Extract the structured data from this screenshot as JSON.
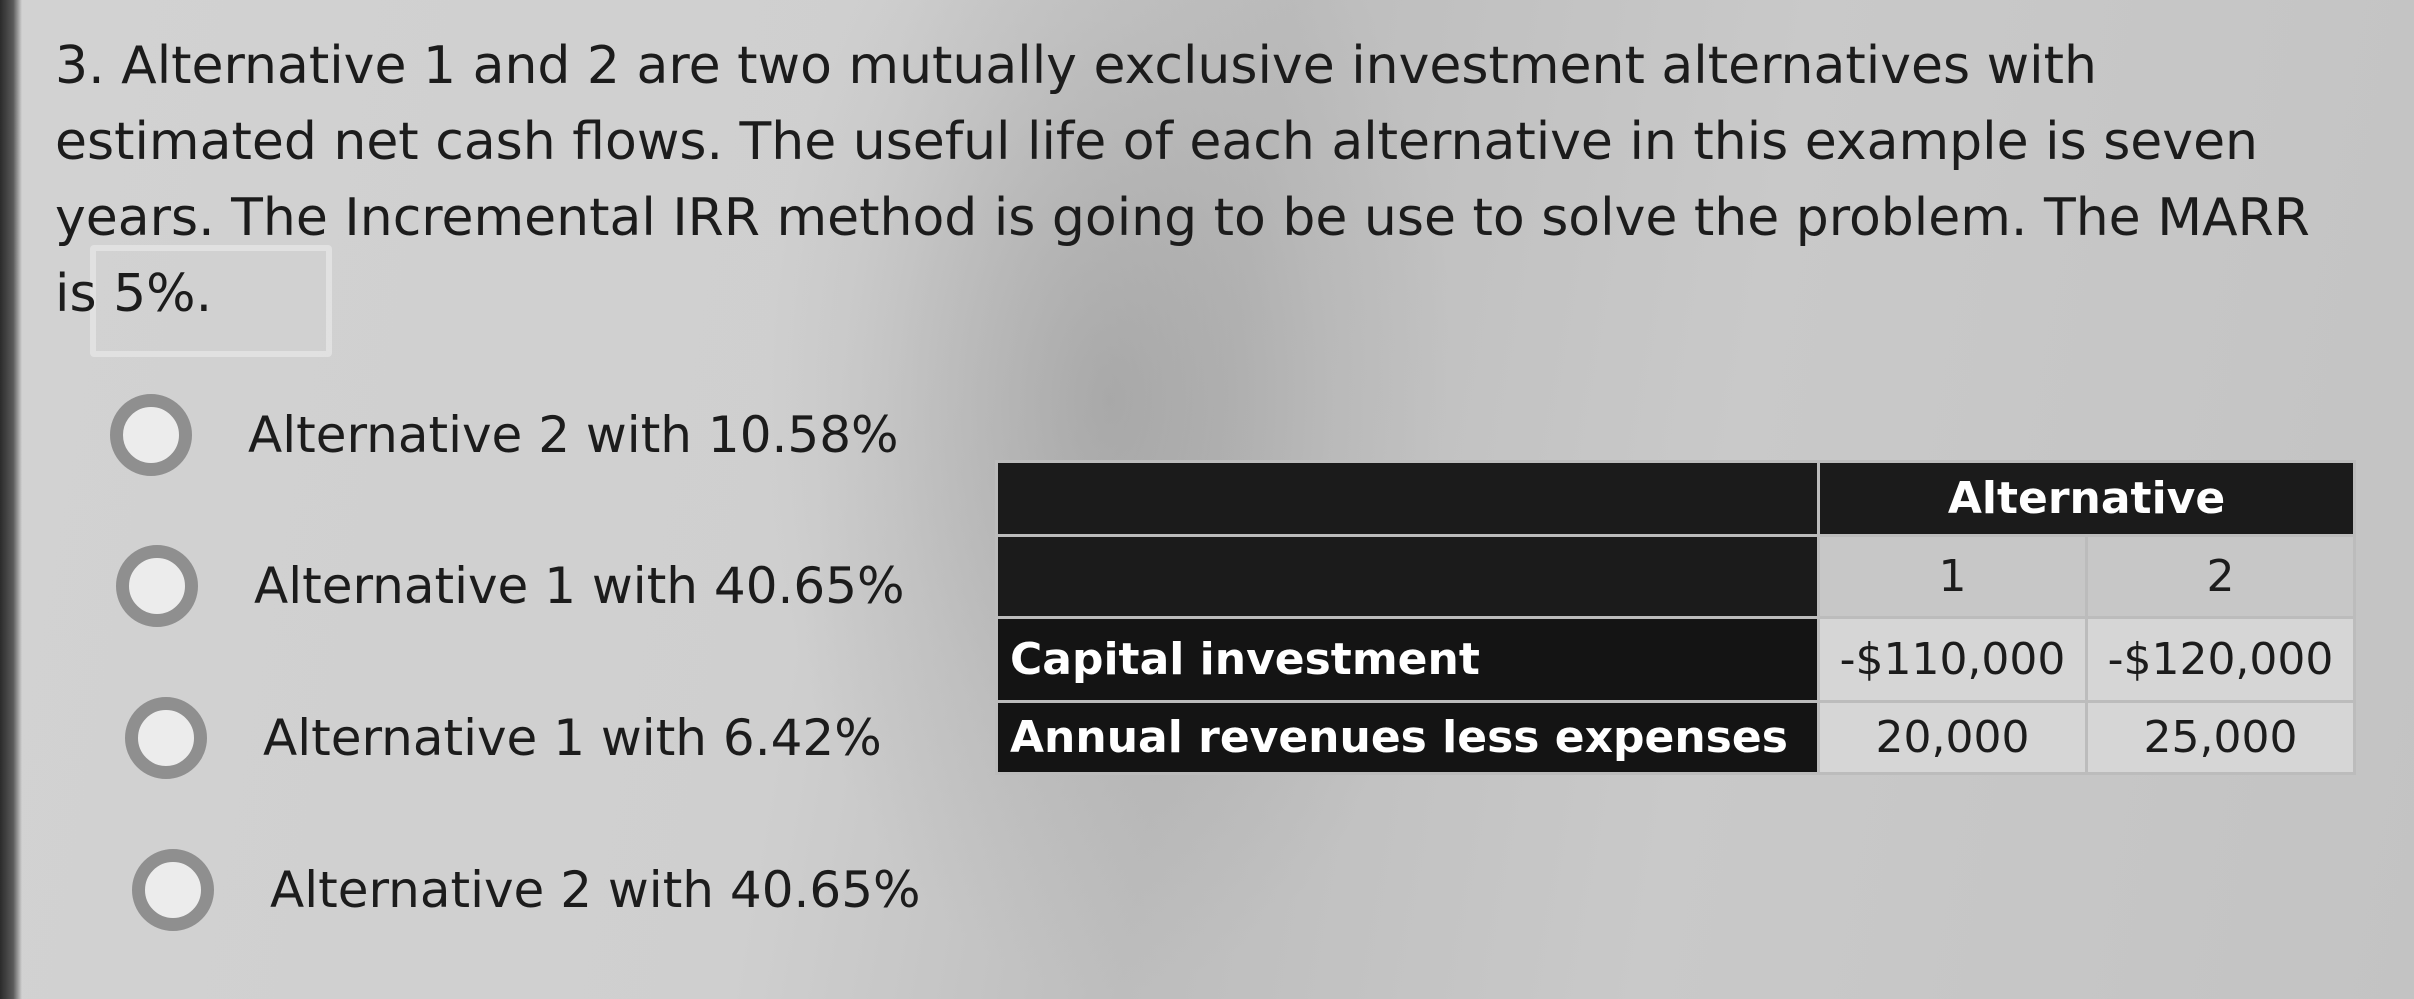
{
  "question": {
    "text": "3. Alternative 1 and 2 are two mutually exclusive investment alternatives with estimated net cash flows. The useful life of each alternative in this example is seven years. The Incremental IRR method is going to be use to solve the problem. The MARR is 5%."
  },
  "options": [
    {
      "label": "Alternative 2 with 10.58%"
    },
    {
      "label": "Alternative 1 with 40.65%"
    },
    {
      "label": "Alternative 1 with 6.42%"
    },
    {
      "label": "Alternative 2 with 40.65%"
    }
  ],
  "table": {
    "group_header": "Alternative",
    "columns": [
      "1",
      "2"
    ],
    "rows": [
      {
        "label": "Capital investment",
        "values": [
          "-$110,000",
          "-$120,000"
        ]
      },
      {
        "label": "Annual revenues less expenses",
        "values": [
          "20,000",
          "25,000"
        ]
      }
    ]
  }
}
